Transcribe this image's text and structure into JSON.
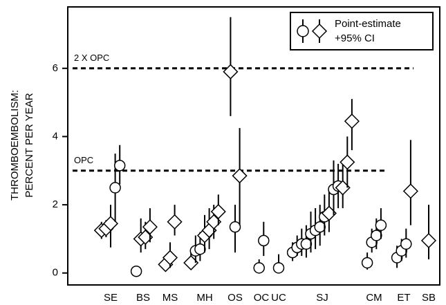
{
  "chart_data": {
    "type": "scatter",
    "ylabel": [
      "THROMBOEMBOLISM:",
      "PERCENT PER YEAR"
    ],
    "ylim": [
      -0.35,
      7.8
    ],
    "yticks": [
      0,
      2,
      4,
      6
    ],
    "legend": {
      "labels": [
        "Point-estimate",
        "+95% CI"
      ],
      "position": "upper right"
    },
    "reference_lines": [
      {
        "label": "2 X OPC",
        "value": 6
      },
      {
        "label": "OPC",
        "value": 3
      }
    ],
    "groups": [
      {
        "label": "SE",
        "points": [
          {
            "shape": "diamond",
            "value": 1.25,
            "lower": 1.0,
            "upper": 1.5
          },
          {
            "shape": "diamond",
            "value": 1.3,
            "lower": 1.05,
            "upper": 1.55
          },
          {
            "shape": "diamond",
            "value": 1.45,
            "lower": 0.75,
            "upper": 2.0
          },
          {
            "shape": "circle",
            "value": 2.5,
            "lower": 1.5,
            "upper": 3.5
          },
          {
            "shape": "circle",
            "value": 3.15,
            "lower": 2.6,
            "upper": 3.75
          }
        ]
      },
      {
        "label": "BS",
        "points": [
          {
            "shape": "circle",
            "value": 0.05,
            "lower": 0,
            "upper": 0.1
          },
          {
            "shape": "diamond",
            "value": 1.0,
            "lower": 0.6,
            "upper": 1.6
          },
          {
            "shape": "diamond",
            "value": 1.05,
            "lower": 0.7,
            "upper": 1.5
          },
          {
            "shape": "diamond",
            "value": 1.35,
            "lower": 0.9,
            "upper": 1.9
          }
        ]
      },
      {
        "label": "MS",
        "points": [
          {
            "shape": "diamond",
            "value": 0.25,
            "lower": 0.1,
            "upper": 0.5
          },
          {
            "shape": "diamond",
            "value": 0.45,
            "lower": 0.15,
            "upper": 0.9
          },
          {
            "shape": "diamond",
            "value": 1.5,
            "lower": 1.1,
            "upper": 2.0
          }
        ]
      },
      {
        "label": "MH",
        "points": [
          {
            "shape": "diamond",
            "value": 0.3,
            "lower": 0.1,
            "upper": 0.7
          },
          {
            "shape": "circle",
            "value": 0.65,
            "lower": 0.3,
            "upper": 1.1
          },
          {
            "shape": "circle",
            "value": 0.7,
            "lower": 0.35,
            "upper": 1.2
          },
          {
            "shape": "diamond",
            "value": 1.1,
            "lower": 0.6,
            "upper": 1.7
          },
          {
            "shape": "diamond",
            "value": 1.25,
            "lower": 0.7,
            "upper": 1.9
          },
          {
            "shape": "diamond",
            "value": 1.5,
            "lower": 1.0,
            "upper": 2.0
          },
          {
            "shape": "diamond",
            "value": 1.8,
            "lower": 1.4,
            "upper": 2.3
          }
        ]
      },
      {
        "label": "OS",
        "points": [
          {
            "shape": "diamond",
            "value": 5.9,
            "lower": 4.6,
            "upper": 7.5
          },
          {
            "shape": "circle",
            "value": 1.35,
            "lower": 0.6,
            "upper": 2.0
          },
          {
            "shape": "diamond",
            "value": 2.85,
            "lower": 1.4,
            "upper": 4.25
          }
        ]
      },
      {
        "label": "OC",
        "points": [
          {
            "shape": "circle",
            "value": 0.15,
            "lower": 0,
            "upper": 0.4
          },
          {
            "shape": "circle",
            "value": 0.95,
            "lower": 0.5,
            "upper": 1.5
          }
        ]
      },
      {
        "label": "UC",
        "points": [
          {
            "shape": "circle",
            "value": 0.15,
            "lower": 0,
            "upper": 0.55
          }
        ]
      },
      {
        "label": "SJ",
        "points": [
          {
            "shape": "circle",
            "value": 0.6,
            "lower": 0.35,
            "upper": 0.9
          },
          {
            "shape": "circle",
            "value": 0.75,
            "lower": 0.5,
            "upper": 1.1
          },
          {
            "shape": "circle",
            "value": 0.85,
            "lower": 0.5,
            "upper": 1.3
          },
          {
            "shape": "circle",
            "value": 0.85,
            "lower": 0.45,
            "upper": 1.4
          },
          {
            "shape": "circle",
            "value": 1.15,
            "lower": 0.6,
            "upper": 1.8
          },
          {
            "shape": "circle",
            "value": 1.25,
            "lower": 0.7,
            "upper": 1.9
          },
          {
            "shape": "circle",
            "value": 1.35,
            "lower": 0.8,
            "upper": 2.0
          },
          {
            "shape": "circle",
            "value": 1.65,
            "lower": 1.1,
            "upper": 2.3
          },
          {
            "shape": "diamond",
            "value": 1.75,
            "lower": 1.2,
            "upper": 2.4
          },
          {
            "shape": "circle",
            "value": 2.45,
            "lower": 1.7,
            "upper": 3.3
          },
          {
            "shape": "circle",
            "value": 2.55,
            "lower": 1.9,
            "upper": 3.2
          },
          {
            "shape": "diamond",
            "value": 2.5,
            "lower": 1.9,
            "upper": 3.2
          },
          {
            "shape": "diamond",
            "value": 3.25,
            "lower": 2.5,
            "upper": 4.0
          },
          {
            "shape": "diamond",
            "value": 4.45,
            "lower": 3.6,
            "upper": 5.1
          }
        ]
      },
      {
        "label": "CM",
        "points": [
          {
            "shape": "circle",
            "value": 0.3,
            "lower": 0.1,
            "upper": 0.6
          },
          {
            "shape": "circle",
            "value": 0.9,
            "lower": 0.6,
            "upper": 1.3
          },
          {
            "shape": "circle",
            "value": 1.1,
            "lower": 0.7,
            "upper": 1.6
          },
          {
            "shape": "circle",
            "value": 1.4,
            "lower": 1.0,
            "upper": 1.9
          }
        ]
      },
      {
        "label": "ET",
        "points": [
          {
            "shape": "circle",
            "value": 0.45,
            "lower": 0.15,
            "upper": 0.8
          },
          {
            "shape": "circle",
            "value": 0.65,
            "lower": 0.35,
            "upper": 1.0
          },
          {
            "shape": "circle",
            "value": 0.85,
            "lower": 0.45,
            "upper": 1.3
          },
          {
            "shape": "diamond",
            "value": 2.4,
            "lower": 1.4,
            "upper": 3.9
          }
        ]
      },
      {
        "label": "SB",
        "points": [
          {
            "shape": "diamond",
            "value": 0.95,
            "lower": 0.4,
            "upper": 2.0
          }
        ]
      }
    ]
  }
}
